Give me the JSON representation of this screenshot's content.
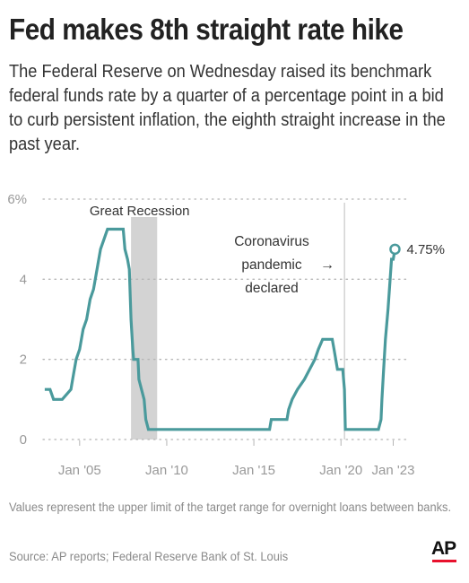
{
  "header": {
    "title": "Fed makes 8th straight rate hike",
    "subtitle": "The Federal Reserve on Wednesday raised its benchmark federal funds rate by a quarter of a percentage point in a bid to curb persistent inflation, the eighth straight increase in the past year."
  },
  "footer": {
    "note": "Values represent the upper limit of the target range for overnight loans between banks.",
    "source": "Source: AP reports; Federal Reserve Bank of St. Louis",
    "logo_text": "AP"
  },
  "colors": {
    "line": "#4a9a9c",
    "recession_band": "#d3d3d3",
    "grid": "#b5b5b5",
    "marker_line": "#bdbdbd",
    "logo_bar": "#e8112d"
  },
  "chart_data": {
    "type": "line",
    "title": "",
    "xlabel": "",
    "ylabel": "",
    "xlim": [
      2002.9,
      2023.9
    ],
    "ylim": [
      0,
      6
    ],
    "y_ticks": [
      {
        "value": 0,
        "label": "0"
      },
      {
        "value": 2,
        "label": "2"
      },
      {
        "value": 4,
        "label": "4"
      },
      {
        "value": 6,
        "label": "6%"
      }
    ],
    "x_ticks": [
      {
        "value": 2005,
        "label": "Jan '05"
      },
      {
        "value": 2010,
        "label": "Jan '10"
      },
      {
        "value": 2015,
        "label": "Jan '15"
      },
      {
        "value": 2020,
        "label": "Jan '20"
      },
      {
        "value": 2023,
        "label": "Jan '23"
      }
    ],
    "grid": "horizontal dotted",
    "shaded_regions": [
      {
        "label": "Great Recession",
        "start": 2007.95,
        "end": 2009.45
      }
    ],
    "vertical_markers": [
      {
        "x": 2020.2,
        "label_lines": [
          "Coronavirus",
          "pandemic",
          "declared"
        ],
        "arrow": "→"
      }
    ],
    "end_label": {
      "x": 2023.1,
      "y": 4.75,
      "label": "4.75%"
    },
    "series": [
      {
        "x": [
          2003.0,
          2003.3,
          2003.5,
          2004.0,
          2004.5,
          2004.6,
          2004.8,
          2005.0,
          2005.2,
          2005.4,
          2005.6,
          2005.8,
          2006.0,
          2006.2,
          2006.4,
          2006.6,
          2007.0,
          2007.5,
          2007.6,
          2007.75,
          2007.85,
          2007.95,
          2008.05,
          2008.1,
          2008.35,
          2008.4,
          2008.7,
          2008.8,
          2008.95,
          2015.9,
          2016.0,
          2016.9,
          2017.0,
          2017.2,
          2017.5,
          2017.9,
          2018.2,
          2018.5,
          2018.7,
          2018.95,
          2019.5,
          2019.6,
          2019.8,
          2020.1,
          2020.2,
          2020.25,
          2022.15,
          2022.3,
          2022.35,
          2022.45,
          2022.55,
          2022.7,
          2022.9,
          2023.0,
          2023.1
        ],
        "y": [
          1.25,
          1.25,
          1.0,
          1.0,
          1.25,
          1.5,
          2.0,
          2.25,
          2.75,
          3.0,
          3.5,
          3.75,
          4.25,
          4.75,
          5.0,
          5.25,
          5.25,
          5.25,
          4.75,
          4.5,
          4.25,
          3.0,
          2.25,
          2.0,
          2.0,
          1.5,
          1.0,
          0.5,
          0.25,
          0.25,
          0.5,
          0.5,
          0.75,
          1.0,
          1.25,
          1.5,
          1.75,
          2.0,
          2.25,
          2.5,
          2.5,
          2.25,
          1.75,
          1.75,
          1.25,
          0.25,
          0.25,
          0.5,
          1.0,
          1.75,
          2.5,
          3.25,
          4.5,
          4.5,
          4.75
        ]
      }
    ]
  }
}
